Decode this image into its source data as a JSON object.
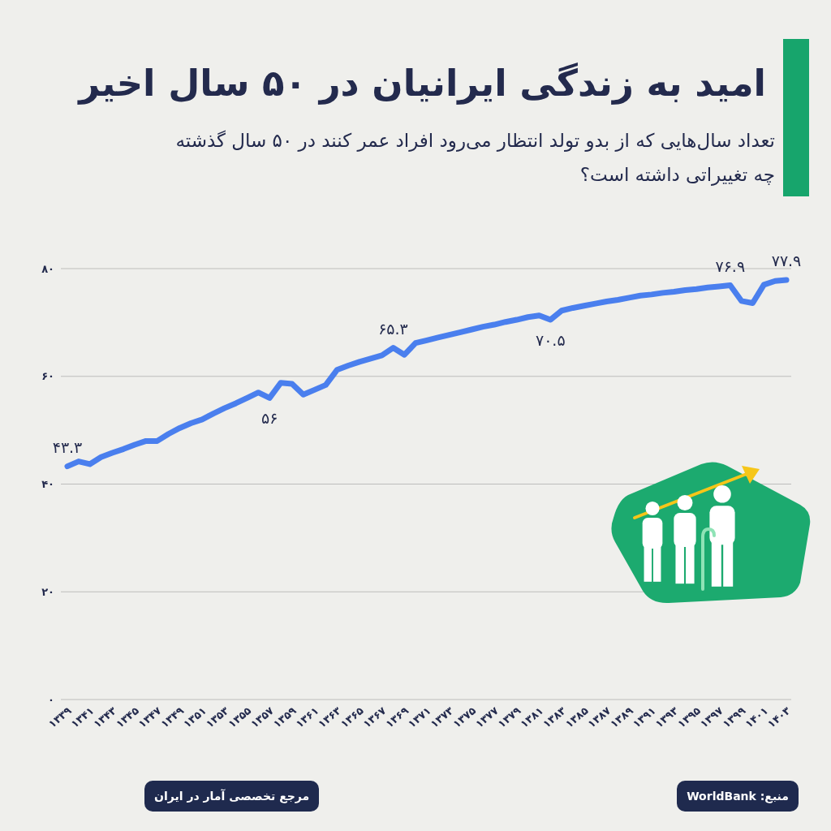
{
  "chart_data": {
    "type": "line",
    "title": "امید به زندگی ایرانیان در ۵۰ سال اخیر",
    "subtitle": "تعداد سال‌هایی که از بدو تولد انتظار می‌رود افراد عمر کنند در ۵۰ سال گذشته چه تغییراتی داشته است؟",
    "annotations": [
      "منبع: WorldBank",
      "مرجع تخصصی آمار در ایران"
    ],
    "categories": [
      "۱۳۳۹",
      null,
      "۱۳۴۱",
      null,
      "۱۳۴۳",
      null,
      "۱۳۴۵",
      null,
      "۱۳۴۷",
      null,
      "۱۳۴۹",
      null,
      "۱۳۵۱",
      null,
      "۱۳۵۳",
      null,
      "۱۳۵۵",
      null,
      "۱۳۵۷",
      null,
      "۱۳۵۹",
      null,
      "۱۳۶۱",
      null,
      "۱۳۶۳",
      null,
      "۱۳۶۵",
      null,
      "۱۳۶۷",
      null,
      "۱۳۶۹",
      null,
      "۱۳۷۱",
      null,
      "۱۳۷۳",
      null,
      "۱۳۷۵",
      null,
      "۱۳۷۷",
      null,
      "۱۳۷۹",
      null,
      "۱۳۸۱",
      null,
      "۱۳۸۳",
      null,
      "۱۳۸۵",
      null,
      "۱۳۸۷",
      null,
      "۱۳۸۹",
      null,
      "۱۳۹۱",
      null,
      "۱۳۹۳",
      null,
      "۱۳۹۵",
      null,
      "۱۳۹۷",
      null,
      "۱۳۹۹",
      null,
      "۱۴۰۱",
      null,
      "۱۴۰۳"
    ],
    "values": [
      43.3,
      44.2,
      43.7,
      45.0,
      45.8,
      46.5,
      47.3,
      48.0,
      48.0,
      49.3,
      50.4,
      51.3,
      52.0,
      53.1,
      54.1,
      55.0,
      56.0,
      57.0,
      56.0,
      58.8,
      58.6,
      56.6,
      57.5,
      58.4,
      61.2,
      62.0,
      62.7,
      63.3,
      63.9,
      65.3,
      64.0,
      66.2,
      66.7,
      67.2,
      67.7,
      68.2,
      68.7,
      69.2,
      69.6,
      70.1,
      70.5,
      71.0,
      71.3,
      70.5,
      72.2,
      72.7,
      73.1,
      73.5,
      73.9,
      74.2,
      74.6,
      75.0,
      75.2,
      75.5,
      75.7,
      76.0,
      76.2,
      76.5,
      76.7,
      76.9,
      74.0,
      73.6,
      77.0,
      77.7,
      77.9
    ],
    "value_labels": [
      "۴۳.۳",
      null,
      null,
      null,
      null,
      null,
      null,
      null,
      null,
      null,
      null,
      null,
      null,
      null,
      null,
      null,
      null,
      null,
      "۵۶",
      null,
      null,
      null,
      null,
      null,
      null,
      null,
      null,
      null,
      null,
      "۶۵.۳",
      null,
      null,
      null,
      null,
      null,
      null,
      null,
      null,
      null,
      null,
      null,
      null,
      null,
      "۷۰.۵",
      null,
      null,
      null,
      null,
      null,
      null,
      null,
      null,
      null,
      null,
      null,
      null,
      null,
      null,
      null,
      "۷۶.۹",
      null,
      null,
      null,
      null,
      "۷۷.۹"
    ],
    "color": "#4a7fee",
    "ylim": [
      0,
      80
    ],
    "yticks": [
      {
        "value": 0,
        "label": "۰"
      },
      {
        "value": 20,
        "label": "۲۰"
      },
      {
        "value": 40,
        "label": "۴۰"
      },
      {
        "value": 60,
        "label": "۶۰"
      },
      {
        "value": 80,
        "label": "۸۰"
      }
    ],
    "grid": "y",
    "marker": "none",
    "line_style": "solid"
  }
}
